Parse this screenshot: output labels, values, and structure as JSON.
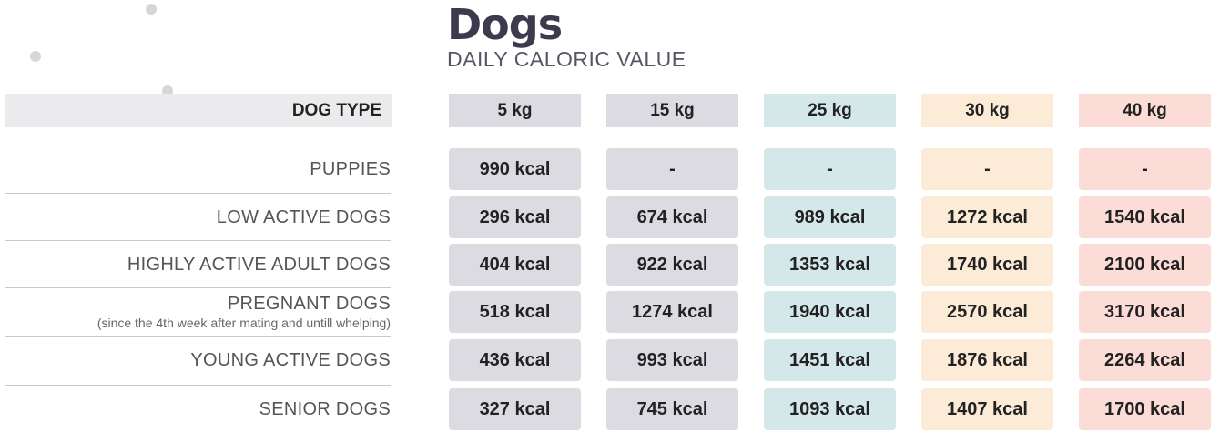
{
  "title": "Dogs",
  "subtitle": "DAILY CALORIC VALUE",
  "table": {
    "type_header": "DOG TYPE",
    "columns": [
      {
        "label": "5 kg",
        "header_color": "#dcdbe2",
        "cell_color": "#dcdbe2"
      },
      {
        "label": "15 kg",
        "header_color": "#dcdbe2",
        "cell_color": "#dcdbe2"
      },
      {
        "label": "25 kg",
        "header_color": "#d4e8e9",
        "cell_color": "#d4e8e9"
      },
      {
        "label": "30 kg",
        "header_color": "#fcebd7",
        "cell_color": "#fcebd7"
      },
      {
        "label": "40 kg",
        "header_color": "#fbdcd7",
        "cell_color": "#fbdcd7"
      }
    ],
    "rows": [
      {
        "label": "PUPPIES",
        "note": "",
        "values": [
          "990 kcal",
          "-",
          "-",
          "-",
          "-"
        ]
      },
      {
        "label": "LOW ACTIVE DOGS",
        "note": "",
        "values": [
          "296 kcal",
          "674 kcal",
          "989 kcal",
          "1272 kcal",
          "1540 kcal"
        ]
      },
      {
        "label": "HIGHLY ACTIVE ADULT DOGS",
        "note": "",
        "values": [
          "404 kcal",
          "922 kcal",
          "1353 kcal",
          "1740 kcal",
          "2100 kcal"
        ]
      },
      {
        "label": "PREGNANT DOGS",
        "note": "(since the 4th week after mating and untill whelping)",
        "values": [
          "518 kcal",
          "1274 kcal",
          "1940 kcal",
          "2570 kcal",
          "3170 kcal"
        ]
      },
      {
        "label": "YOUNG ACTIVE DOGS",
        "note": "",
        "values": [
          "436 kcal",
          "993 kcal",
          "1451 kcal",
          "1876 kcal",
          "2264 kcal"
        ]
      },
      {
        "label": "SENIOR DOGS",
        "note": "",
        "values": [
          "327 kcal",
          "745 kcal",
          "1093 kcal",
          "1407 kcal",
          "1700 kcal"
        ]
      }
    ]
  }
}
